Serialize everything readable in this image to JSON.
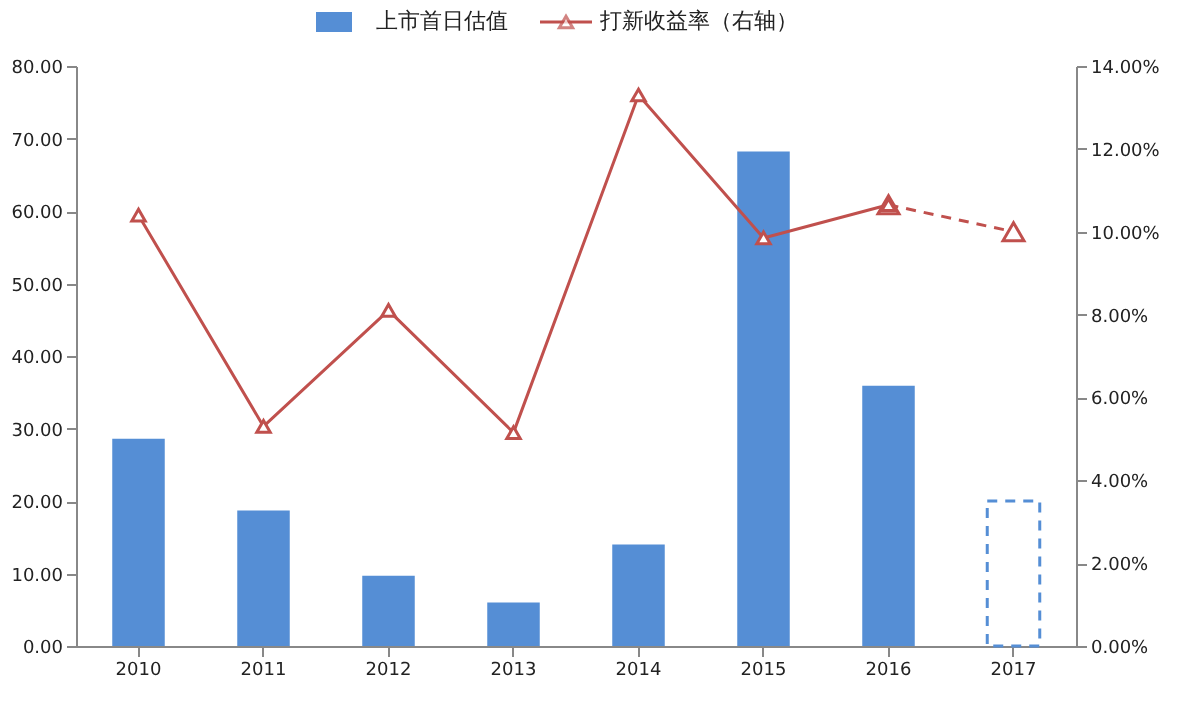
{
  "chart_data": {
    "type": "bar",
    "categories": [
      "2010",
      "2011",
      "2012",
      "2013",
      "2014",
      "2015",
      "2016",
      "2017"
    ],
    "series": [
      {
        "name": "上市首日估值",
        "color": "#558ed5",
        "values": [
          28.6,
          18.7,
          9.7,
          6.0,
          14.0,
          68.2,
          35.9,
          null
        ]
      },
      {
        "color": "#558ed5",
        "line_style": "dashed",
        "values": [
          null,
          null,
          null,
          null,
          null,
          null,
          null,
          20.0
        ]
      },
      {
        "name": "打新收益率（右轴）",
        "type": "line",
        "axis": "y2",
        "color": "#c0504d",
        "marker": "triangle",
        "values": [
          10.4,
          5.3,
          8.1,
          5.15,
          13.3,
          9.85,
          10.65,
          null
        ]
      },
      {
        "type": "line",
        "axis": "y2",
        "color": "#c0504d",
        "marker": "triangle",
        "line_style": "dashed",
        "values": [
          null,
          null,
          null,
          null,
          null,
          null,
          10.65,
          10.0
        ]
      }
    ],
    "ylim": [
      0,
      80
    ],
    "yticks": [
      {
        "value": 0,
        "label": "0.00"
      },
      {
        "value": 10,
        "label": "10.00"
      },
      {
        "value": 20,
        "label": "20.00"
      },
      {
        "value": 30,
        "label": "30.00"
      },
      {
        "value": 40,
        "label": "40.00"
      },
      {
        "value": 50,
        "label": "50.00"
      },
      {
        "value": 60,
        "label": "60.00"
      },
      {
        "value": 70,
        "label": "70.00"
      },
      {
        "value": 80,
        "label": "80.00"
      }
    ],
    "y2lim": [
      0,
      14
    ],
    "y2ticks": [
      {
        "value": 0,
        "label": "0.00%"
      },
      {
        "value": 2,
        "label": "2.00%"
      },
      {
        "value": 4,
        "label": "4.00%"
      },
      {
        "value": 6,
        "label": "6.00%"
      },
      {
        "value": 8,
        "label": "8.00%"
      },
      {
        "value": 10,
        "label": "10.00%"
      },
      {
        "value": 12,
        "label": "12.00%"
      },
      {
        "value": 14,
        "label": "14.00%"
      }
    ],
    "grid": false,
    "legend": "top"
  }
}
